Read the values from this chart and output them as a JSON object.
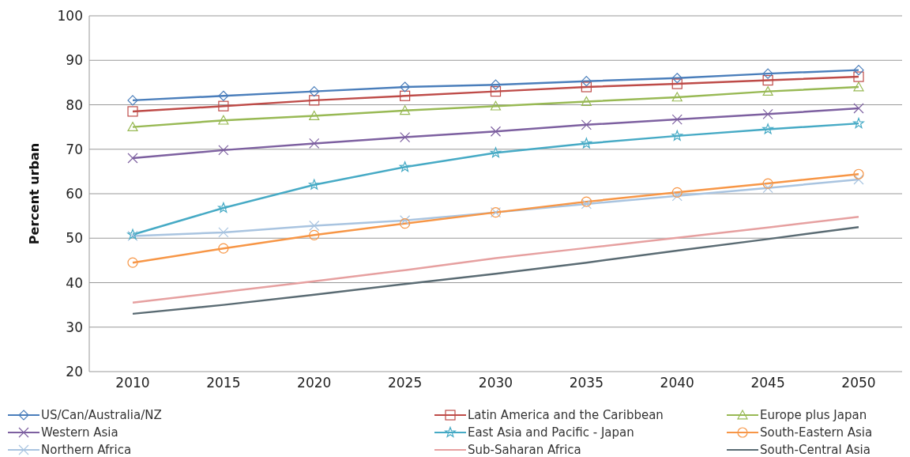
{
  "chart_data": {
    "type": "line",
    "ylabel": "Percent urban",
    "categories": [
      "2010",
      "2015",
      "2020",
      "2025",
      "2030",
      "2035",
      "2040",
      "2045",
      "2050"
    ],
    "ylim": [
      20,
      100
    ],
    "yticks": [
      20,
      30,
      40,
      50,
      60,
      70,
      80,
      90,
      100
    ],
    "grid": "y",
    "legend": "bottom",
    "series": [
      {
        "name": "US/Can/Australia/NZ",
        "color": "#4a7ebb",
        "marker": "diamond",
        "values": [
          81,
          82,
          83,
          84,
          84.5,
          85.3,
          86,
          87,
          87.8
        ]
      },
      {
        "name": "Latin America and the Caribbean",
        "color": "#be4b48",
        "marker": "square",
        "values": [
          78.5,
          79.7,
          81,
          82,
          83,
          84,
          84.7,
          85.5,
          86.3
        ]
      },
      {
        "name": "Europe plus Japan",
        "color": "#98b954",
        "marker": "triangle",
        "values": [
          75,
          76.5,
          77.5,
          78.7,
          79.7,
          80.7,
          81.7,
          83,
          84
        ]
      },
      {
        "name": "Western Asia",
        "color": "#7d60a0",
        "marker": "cross",
        "values": [
          68,
          69.8,
          71.3,
          72.7,
          74,
          75.5,
          76.7,
          77.9,
          79.2
        ]
      },
      {
        "name": "East Asia and Pacific - Japan",
        "color": "#46aac5",
        "marker": "star",
        "values": [
          50.8,
          56.8,
          62,
          66,
          69.2,
          71.3,
          73,
          74.5,
          75.8
        ]
      },
      {
        "name": "South-Eastern Asia",
        "color": "#f79646",
        "marker": "circle",
        "values": [
          44.5,
          47.7,
          50.7,
          53.3,
          55.8,
          58.2,
          60.3,
          62.3,
          64.4
        ]
      },
      {
        "name": "Northern Africa",
        "color": "#a9c4e0",
        "marker": "cross",
        "values": [
          50.5,
          51.3,
          52.8,
          54,
          55.8,
          57.7,
          59.5,
          61.3,
          63.2
        ]
      },
      {
        "name": "Sub-Saharan Africa",
        "color": "#e6a0a0",
        "marker": "none",
        "values": [
          35.5,
          37.9,
          40.3,
          42.8,
          45.5,
          47.8,
          50.1,
          52.4,
          54.8
        ]
      },
      {
        "name": "South-Central Asia",
        "color": "#5a6b73",
        "marker": "none",
        "values": [
          33,
          35,
          37.3,
          39.7,
          42,
          44.5,
          47.2,
          49.8,
          52.5
        ]
      }
    ]
  }
}
